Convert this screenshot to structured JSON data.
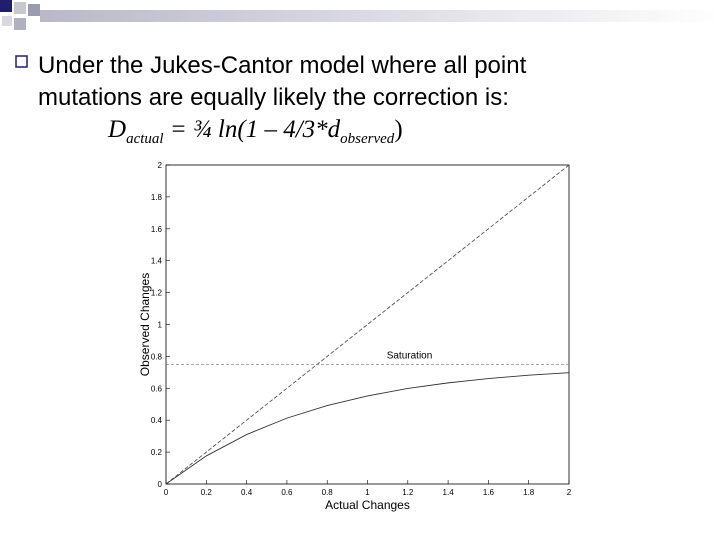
{
  "slide": {
    "lines": [
      "Under the Jukes-Cantor model where all point",
      "mutations are equally likely the correction is:"
    ],
    "formula": {
      "d": "D",
      "actual": "actual",
      "middle": " = ¾ ln(1 – 4/3*d",
      "observed": "observed",
      "close": ")"
    }
  },
  "chart_data": {
    "type": "line",
    "xlabel": "Actual Changes",
    "ylabel": "Observed Changes",
    "xlim": [
      0,
      2
    ],
    "ylim": [
      0,
      2
    ],
    "xticks": [
      0,
      0.2,
      0.4,
      0.6,
      0.8,
      1,
      1.2,
      1.4,
      1.6,
      1.8,
      2
    ],
    "yticks": [
      0,
      0.2,
      0.4,
      0.6,
      0.8,
      1,
      1.2,
      1.4,
      1.6,
      1.8,
      2
    ],
    "series": [
      {
        "color": "#555555",
        "dashed": true,
        "x": [
          0,
          2
        ],
        "values": [
          0,
          2
        ]
      },
      {
        "color": "#333333",
        "dashed": false,
        "x": [
          0,
          0.2,
          0.4,
          0.6,
          0.8,
          1,
          1.2,
          1.4,
          1.6,
          1.8,
          2
        ],
        "values": [
          0,
          0.176,
          0.31,
          0.413,
          0.492,
          0.552,
          0.599,
          0.634,
          0.661,
          0.682,
          0.698
        ]
      }
    ],
    "hlines": [
      {
        "value": 0.75,
        "label": "Saturation",
        "color": "#888888"
      }
    ]
  }
}
